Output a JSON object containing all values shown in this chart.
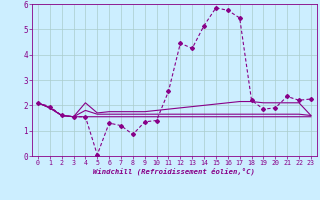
{
  "xlabel": "Windchill (Refroidissement éolien,°C)",
  "xlim": [
    -0.5,
    23.5
  ],
  "ylim": [
    0,
    6
  ],
  "xticks": [
    0,
    1,
    2,
    3,
    4,
    5,
    6,
    7,
    8,
    9,
    10,
    11,
    12,
    13,
    14,
    15,
    16,
    17,
    18,
    19,
    20,
    21,
    22,
    23
  ],
  "yticks": [
    0,
    1,
    2,
    3,
    4,
    5,
    6
  ],
  "bg_color": "#cceeff",
  "line_color": "#880088",
  "grid_color": "#aacccc",
  "series": [
    [
      2.1,
      1.95,
      1.6,
      1.55,
      1.55,
      0.05,
      1.3,
      1.2,
      0.85,
      1.35,
      1.4,
      2.55,
      4.45,
      4.25,
      5.15,
      5.85,
      5.75,
      5.45,
      2.2,
      1.85,
      1.9,
      2.35,
      2.2,
      2.25
    ],
    [
      2.1,
      1.9,
      1.6,
      1.55,
      2.1,
      1.7,
      1.75,
      1.75,
      1.75,
      1.75,
      1.8,
      1.85,
      1.9,
      1.95,
      2.0,
      2.05,
      2.1,
      2.15,
      2.15,
      2.1,
      2.1,
      2.1,
      2.1,
      1.6
    ],
    [
      2.1,
      1.9,
      1.6,
      1.55,
      1.8,
      1.65,
      1.65,
      1.65,
      1.65,
      1.65,
      1.65,
      1.65,
      1.65,
      1.65,
      1.65,
      1.65,
      1.65,
      1.65,
      1.65,
      1.65,
      1.65,
      1.65,
      1.65,
      1.6
    ],
    [
      2.1,
      1.9,
      1.6,
      1.55,
      1.55,
      1.55,
      1.55,
      1.55,
      1.55,
      1.55,
      1.55,
      1.55,
      1.55,
      1.55,
      1.55,
      1.55,
      1.55,
      1.55,
      1.55,
      1.55,
      1.55,
      1.55,
      1.55,
      1.55
    ]
  ],
  "marker_series": 0,
  "marker": "D",
  "marker_size": 2.0,
  "linewidth": 0.8
}
